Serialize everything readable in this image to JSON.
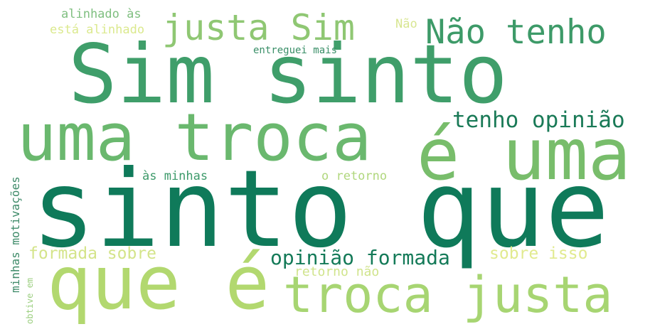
{
  "words": [
    {
      "text": "Sim sinto",
      "color": "#3f9e6a"
    },
    {
      "text": "sinto que",
      "color": "#0f7a5a"
    },
    {
      "text": "uma troca",
      "color": "#6ab86e"
    },
    {
      "text": "é uma",
      "color": "#78bd6b"
    },
    {
      "text": "que é",
      "color": "#b2d86f"
    },
    {
      "text": "troca justa",
      "color": "#a7d572"
    },
    {
      "text": "justa Sim",
      "color": "#8fc773"
    },
    {
      "text": "Não tenho",
      "color": "#3d9a68"
    },
    {
      "text": "tenho opinião",
      "color": "#1a7a57"
    },
    {
      "text": "opinião formada",
      "color": "#147a58"
    },
    {
      "text": "formada sobre",
      "color": "#d4e48a"
    },
    {
      "text": "sobre isso",
      "color": "#e1ea8f"
    },
    {
      "text": "retorno não",
      "color": "#d0e48c"
    },
    {
      "text": "às minhas",
      "color": "#3d9a6a"
    },
    {
      "text": "o retorno",
      "color": "#b0d77d"
    },
    {
      "text": "alinhado às",
      "color": "#7fbf80"
    },
    {
      "text": "está alinhado",
      "color": "#dbe98e"
    },
    {
      "text": "Não",
      "color": "#d8e692"
    },
    {
      "text": "entreguei mais",
      "color": "#3a8f68"
    },
    {
      "text": "minhas motivações",
      "color": "#3d8a68"
    },
    {
      "text": "obtive em",
      "color": "#9ccf80"
    }
  ]
}
